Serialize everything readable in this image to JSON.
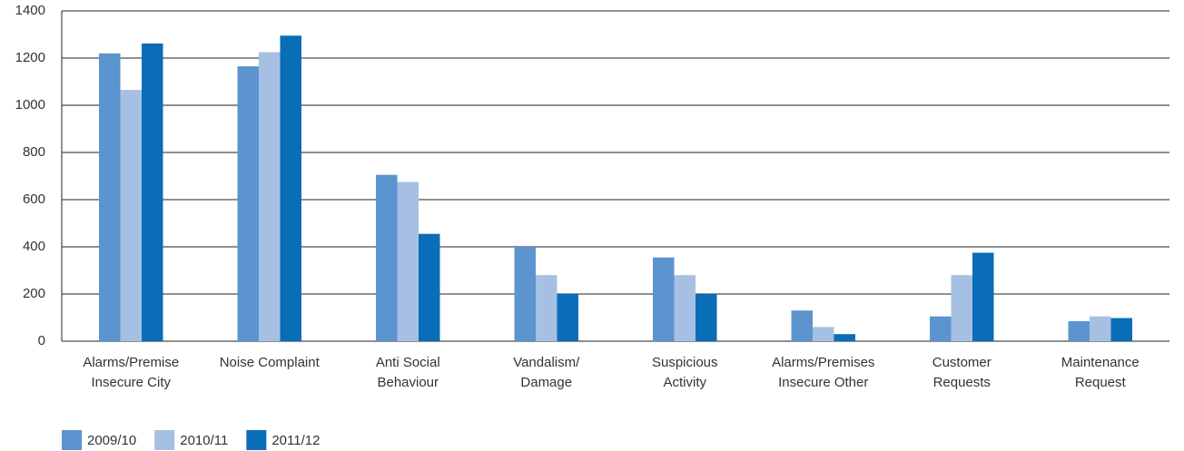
{
  "chart_data": {
    "type": "bar",
    "categories": [
      [
        "Alarms/Premise",
        "Insecure City"
      ],
      [
        "Noise Complaint"
      ],
      [
        "Anti Social",
        "Behaviour"
      ],
      [
        "Vandalism/",
        "Damage"
      ],
      [
        "Suspicious",
        "Activity"
      ],
      [
        "Alarms/Premises",
        "Insecure Other"
      ],
      [
        "Customer",
        "Requests"
      ],
      [
        "Maintenance",
        "Request"
      ]
    ],
    "series": [
      {
        "name": "2009/10",
        "color": "#5b94cf",
        "values": [
          1220,
          1165,
          705,
          400,
          355,
          130,
          105,
          85
        ]
      },
      {
        "name": "2010/11",
        "color": "#a6c0e3",
        "values": [
          1065,
          1225,
          675,
          280,
          280,
          60,
          280,
          105
        ]
      },
      {
        "name": "2011/12",
        "color": "#0a6db8",
        "values": [
          1262,
          1295,
          455,
          200,
          200,
          30,
          375,
          98
        ]
      }
    ],
    "ylim": [
      0,
      1400
    ],
    "yticks": [
      0,
      200,
      400,
      600,
      800,
      1000,
      1200,
      1400
    ],
    "grid": true,
    "legend": "bottom-left"
  }
}
